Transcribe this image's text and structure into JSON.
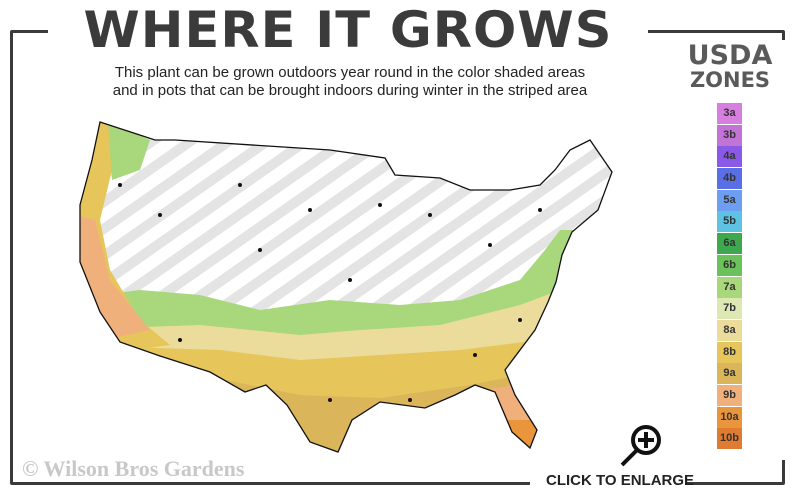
{
  "header": {
    "title": "WHERE IT GROWS",
    "subtitle_line1": "This plant can be grown outdoors year round in the color shaded areas",
    "subtitle_line2": "and in pots that can be brought indoors during winter in the striped area"
  },
  "legend": {
    "title_line1": "USDA",
    "title_line2": "ZONES",
    "zones": [
      {
        "label": "3a",
        "color": "#d77fe0"
      },
      {
        "label": "3b",
        "color": "#c274d6"
      },
      {
        "label": "4a",
        "color": "#8a5ae6"
      },
      {
        "label": "4b",
        "color": "#5a6fe6"
      },
      {
        "label": "5a",
        "color": "#6d9ef2"
      },
      {
        "label": "5b",
        "color": "#5ec3e2"
      },
      {
        "label": "6a",
        "color": "#3da84e"
      },
      {
        "label": "6b",
        "color": "#6cc25a"
      },
      {
        "label": "7a",
        "color": "#a8d77c"
      },
      {
        "label": "7b",
        "color": "#dde8b4"
      },
      {
        "label": "8a",
        "color": "#ecdc9c"
      },
      {
        "label": "8b",
        "color": "#e6c65a"
      },
      {
        "label": "9a",
        "color": "#dbb55a"
      },
      {
        "label": "9b",
        "color": "#f0b07c"
      },
      {
        "label": "10a",
        "color": "#e9953c"
      },
      {
        "label": "10b",
        "color": "#e07c32"
      }
    ]
  },
  "map": {
    "icon": "usa-hardiness-map"
  },
  "footer": {
    "copyright": "© Wilson Bros Gardens",
    "enlarge_label": "CLICK TO ENLARGE",
    "enlarge_icon": "magnifier-plus-icon"
  }
}
